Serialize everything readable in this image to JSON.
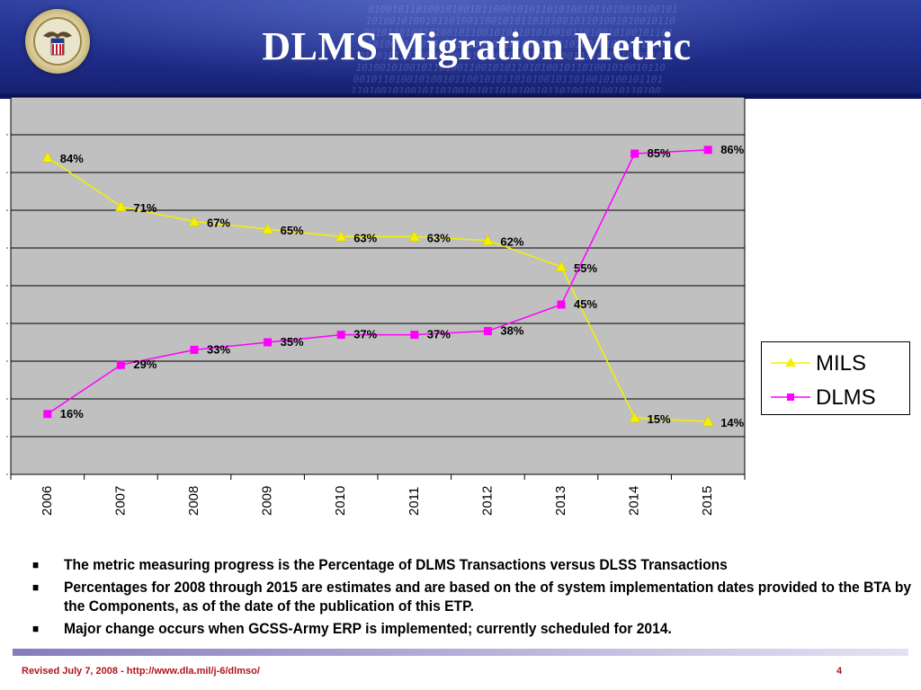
{
  "header": {
    "title": "DLMS Migration Metric",
    "logo_icon": "dod-seal-icon"
  },
  "chart_data": {
    "type": "line",
    "categories": [
      "2006",
      "2007",
      "2008",
      "2009",
      "2010",
      "2011",
      "2012",
      "2013",
      "2014",
      "2015"
    ],
    "series": [
      {
        "name": "MILS",
        "values": [
          84,
          71,
          67,
          65,
          63,
          63,
          62,
          55,
          15,
          14
        ],
        "color": "#f5f000",
        "marker": "triangle",
        "labels": [
          "84%",
          "71%",
          "67%",
          "65%",
          "63%",
          "63%",
          "62%",
          "55%",
          "15%",
          "14%"
        ]
      },
      {
        "name": "DLMS",
        "values": [
          16,
          29,
          33,
          35,
          37,
          37,
          38,
          45,
          85,
          86
        ],
        "color": "#ff00ff",
        "marker": "square",
        "labels": [
          "16%",
          "29%",
          "33%",
          "35%",
          "37%",
          "37%",
          "38%",
          "45%",
          "85%",
          "86%"
        ]
      }
    ],
    "ylim": [
      0,
      100
    ],
    "grid": true,
    "legend_position": "right",
    "plot_background": "#c0c0c0"
  },
  "legend": {
    "items": [
      {
        "label": "MILS"
      },
      {
        "label": "DLMS"
      }
    ]
  },
  "bullets": [
    "The metric measuring progress is the Percentage of DLMS Transactions versus DLSS Transactions",
    "Percentages for 2008 through 2015 are estimates and are based on the  of system implementation dates provided to the BTA by the Components, as of the date of the publication of this ETP.",
    "Major change occurs when GCSS-Army ERP is implemented; currently scheduled for 2014."
  ],
  "bullet_mark": "■",
  "footer": {
    "left": "Revised July 7, 2008 - http://www.dla.mil/j-6/dlmso/",
    "page": "4"
  },
  "colors": {
    "header_blue": "#1f2d8a",
    "footer_red": "#b0141e",
    "mils": "#f5f000",
    "dlms": "#ff00ff"
  }
}
